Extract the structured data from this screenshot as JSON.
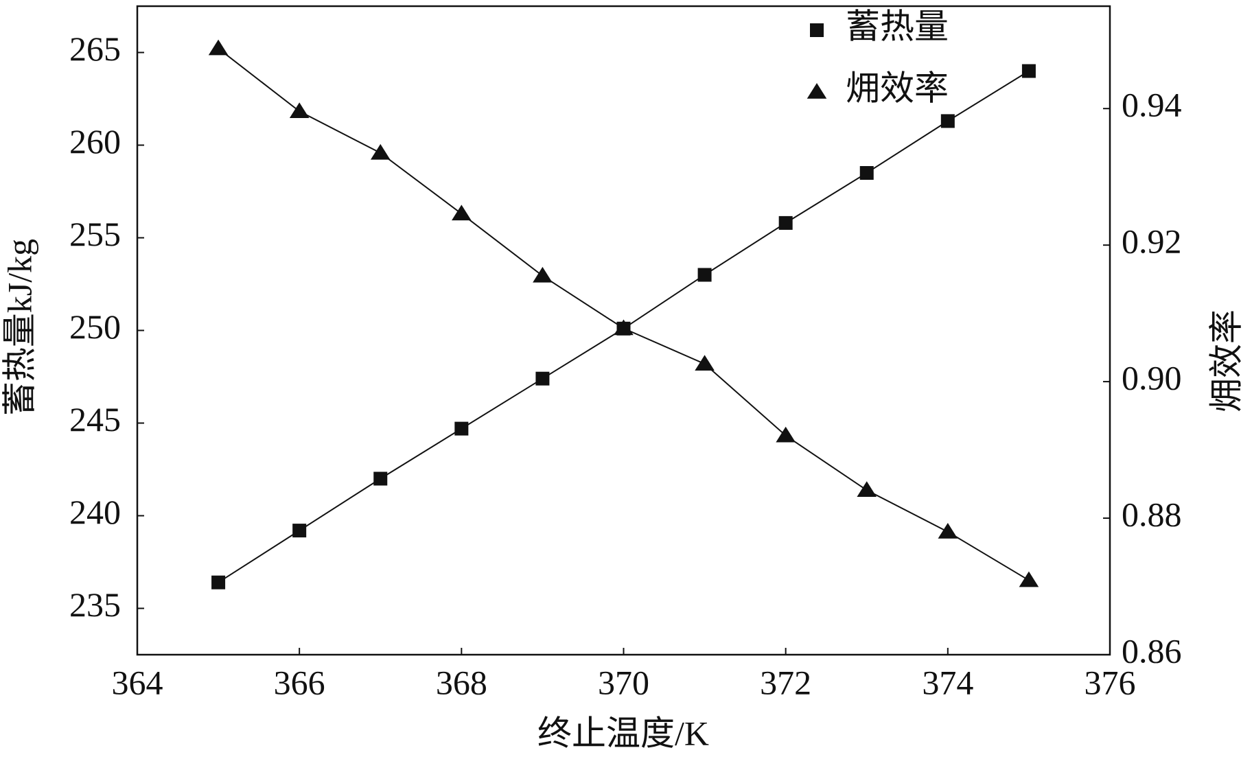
{
  "chart_data": {
    "type": "line",
    "x_label": "终止温度/K",
    "y_label": "蓄热量kJ/kg",
    "y2_label": "㶲效率",
    "x": [
      365,
      366,
      367,
      368,
      369,
      370,
      371,
      372,
      373,
      374,
      375
    ],
    "series": [
      {
        "name": "蓄热量",
        "color": "#111111",
        "marker": "square",
        "values": [
          236.4,
          239.2,
          242.0,
          244.7,
          247.4,
          250.1,
          253.0,
          255.8,
          258.5,
          261.3,
          264.0
        ]
      },
      {
        "name": "㶲效率",
        "color": "#111111",
        "marker": "triangle",
        "axis": "y2",
        "values": [
          0.9488,
          0.9396,
          0.9335,
          0.9246,
          0.9155,
          0.9078,
          0.9026,
          0.8921,
          0.8841,
          0.878,
          0.8709
        ]
      }
    ],
    "xlim": [
      364,
      376
    ],
    "xticks": [
      364,
      366,
      368,
      370,
      372,
      374,
      376
    ],
    "ylim": [
      232.5,
      267.5
    ],
    "yticks": [
      235,
      240,
      245,
      250,
      255,
      260,
      265
    ],
    "y2lim": [
      0.86,
      0.955
    ],
    "y2ticks": [
      0.86,
      0.88,
      {
        "value": 0.9,
        "label": "0.90"
      },
      0.92,
      0.94
    ],
    "grid": false,
    "legend": "upper right"
  }
}
